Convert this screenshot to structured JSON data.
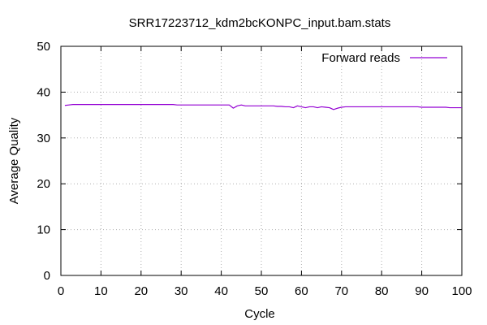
{
  "chart_data": {
    "type": "line",
    "title": "SRR17223712_kdm2bcKONPC_input.bam.stats",
    "xlabel": "Cycle",
    "ylabel": "Average Quality",
    "xlim": [
      0,
      100
    ],
    "ylim": [
      0,
      50
    ],
    "xticks": [
      0,
      10,
      20,
      30,
      40,
      50,
      60,
      70,
      80,
      90,
      100
    ],
    "yticks": [
      0,
      10,
      20,
      30,
      40,
      50
    ],
    "grid": true,
    "legend_position": "top-right",
    "series": [
      {
        "name": "Forward reads",
        "color": "#9400d3",
        "x": [
          1,
          2,
          3,
          4,
          5,
          6,
          7,
          8,
          9,
          10,
          11,
          12,
          13,
          14,
          15,
          16,
          17,
          18,
          19,
          20,
          21,
          22,
          23,
          24,
          25,
          26,
          27,
          28,
          29,
          30,
          31,
          32,
          33,
          34,
          35,
          36,
          37,
          38,
          39,
          40,
          41,
          42,
          43,
          44,
          45,
          46,
          47,
          48,
          49,
          50,
          51,
          52,
          53,
          54,
          55,
          56,
          57,
          58,
          59,
          60,
          61,
          62,
          63,
          64,
          65,
          66,
          67,
          68,
          69,
          70,
          71,
          72,
          73,
          74,
          75,
          76,
          77,
          78,
          79,
          80,
          81,
          82,
          83,
          84,
          85,
          86,
          87,
          88,
          89,
          90,
          91,
          92,
          93,
          94,
          95,
          96,
          97,
          98,
          99,
          100
        ],
        "y": [
          37.1,
          37.2,
          37.3,
          37.3,
          37.3,
          37.3,
          37.3,
          37.3,
          37.3,
          37.3,
          37.3,
          37.3,
          37.3,
          37.3,
          37.3,
          37.3,
          37.3,
          37.3,
          37.3,
          37.3,
          37.3,
          37.3,
          37.3,
          37.3,
          37.3,
          37.3,
          37.3,
          37.3,
          37.2,
          37.2,
          37.2,
          37.2,
          37.2,
          37.2,
          37.2,
          37.2,
          37.2,
          37.2,
          37.2,
          37.2,
          37.2,
          37.2,
          36.5,
          37.0,
          37.2,
          37.0,
          37.0,
          37.0,
          37.0,
          37.0,
          37.0,
          37.0,
          37.0,
          36.9,
          36.9,
          36.8,
          36.8,
          36.6,
          37.0,
          36.8,
          36.6,
          36.8,
          36.8,
          36.6,
          36.8,
          36.7,
          36.6,
          36.2,
          36.5,
          36.7,
          36.8,
          36.8,
          36.8,
          36.8,
          36.8,
          36.8,
          36.8,
          36.8,
          36.8,
          36.8,
          36.8,
          36.8,
          36.8,
          36.8,
          36.8,
          36.8,
          36.8,
          36.8,
          36.8,
          36.7,
          36.7,
          36.7,
          36.7,
          36.7,
          36.7,
          36.7,
          36.6,
          36.6,
          36.6,
          36.6
        ]
      }
    ]
  }
}
